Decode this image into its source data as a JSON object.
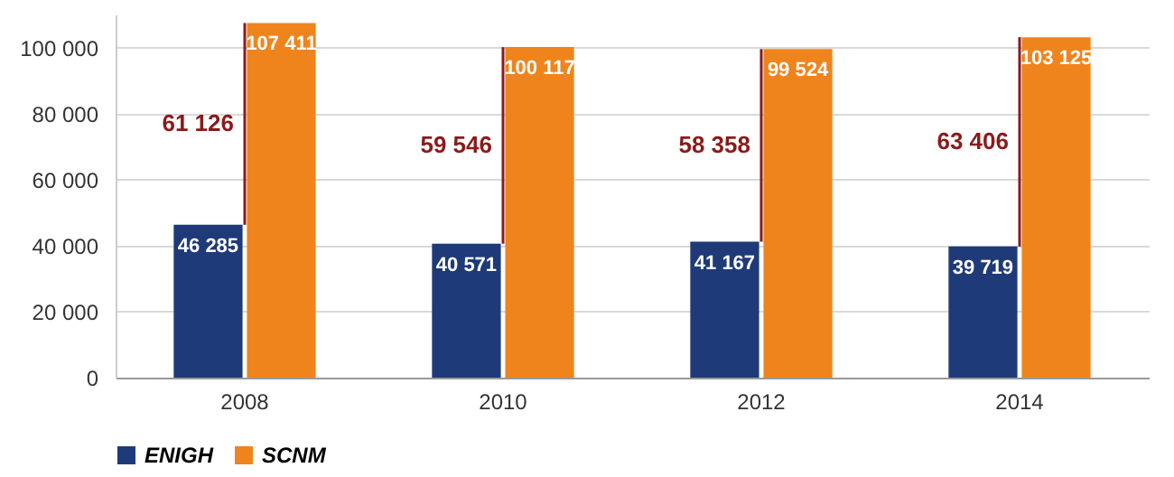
{
  "chart_data": {
    "type": "bar",
    "categories": [
      "2008",
      "2010",
      "2012",
      "2014"
    ],
    "series": [
      {
        "name": "ENIGH",
        "color": "#1f3a78",
        "values": [
          46285,
          40571,
          41167,
          39719
        ],
        "value_labels": [
          "46 285",
          "40 571",
          "41 167",
          "39 719"
        ]
      },
      {
        "name": "SCNM",
        "color": "#f0841c",
        "values": [
          107411,
          100117,
          99524,
          103125
        ],
        "value_labels": [
          "107 411",
          "100 117",
          "99 524",
          "103 125"
        ]
      }
    ],
    "ylim": [
      0,
      110000
    ],
    "yticks": [
      {
        "value": 0,
        "label": "0"
      },
      {
        "value": 20000,
        "label": "20 000"
      },
      {
        "value": 40000,
        "label": "40 000"
      },
      {
        "value": 60000,
        "label": "60 000"
      },
      {
        "value": 80000,
        "label": "80 000"
      },
      {
        "value": 100000,
        "label": "100 000"
      }
    ],
    "grid": "y",
    "legend": "bottom",
    "annotations": [
      {
        "text": "61 126",
        "x": "2008",
        "y": 76800
      },
      {
        "text": "59 546",
        "x": "2010",
        "y": 70300
      },
      {
        "text": "58 358",
        "x": "2012",
        "y": 70300
      },
      {
        "text": "63 406",
        "x": "2014",
        "y": 71400
      }
    ]
  }
}
